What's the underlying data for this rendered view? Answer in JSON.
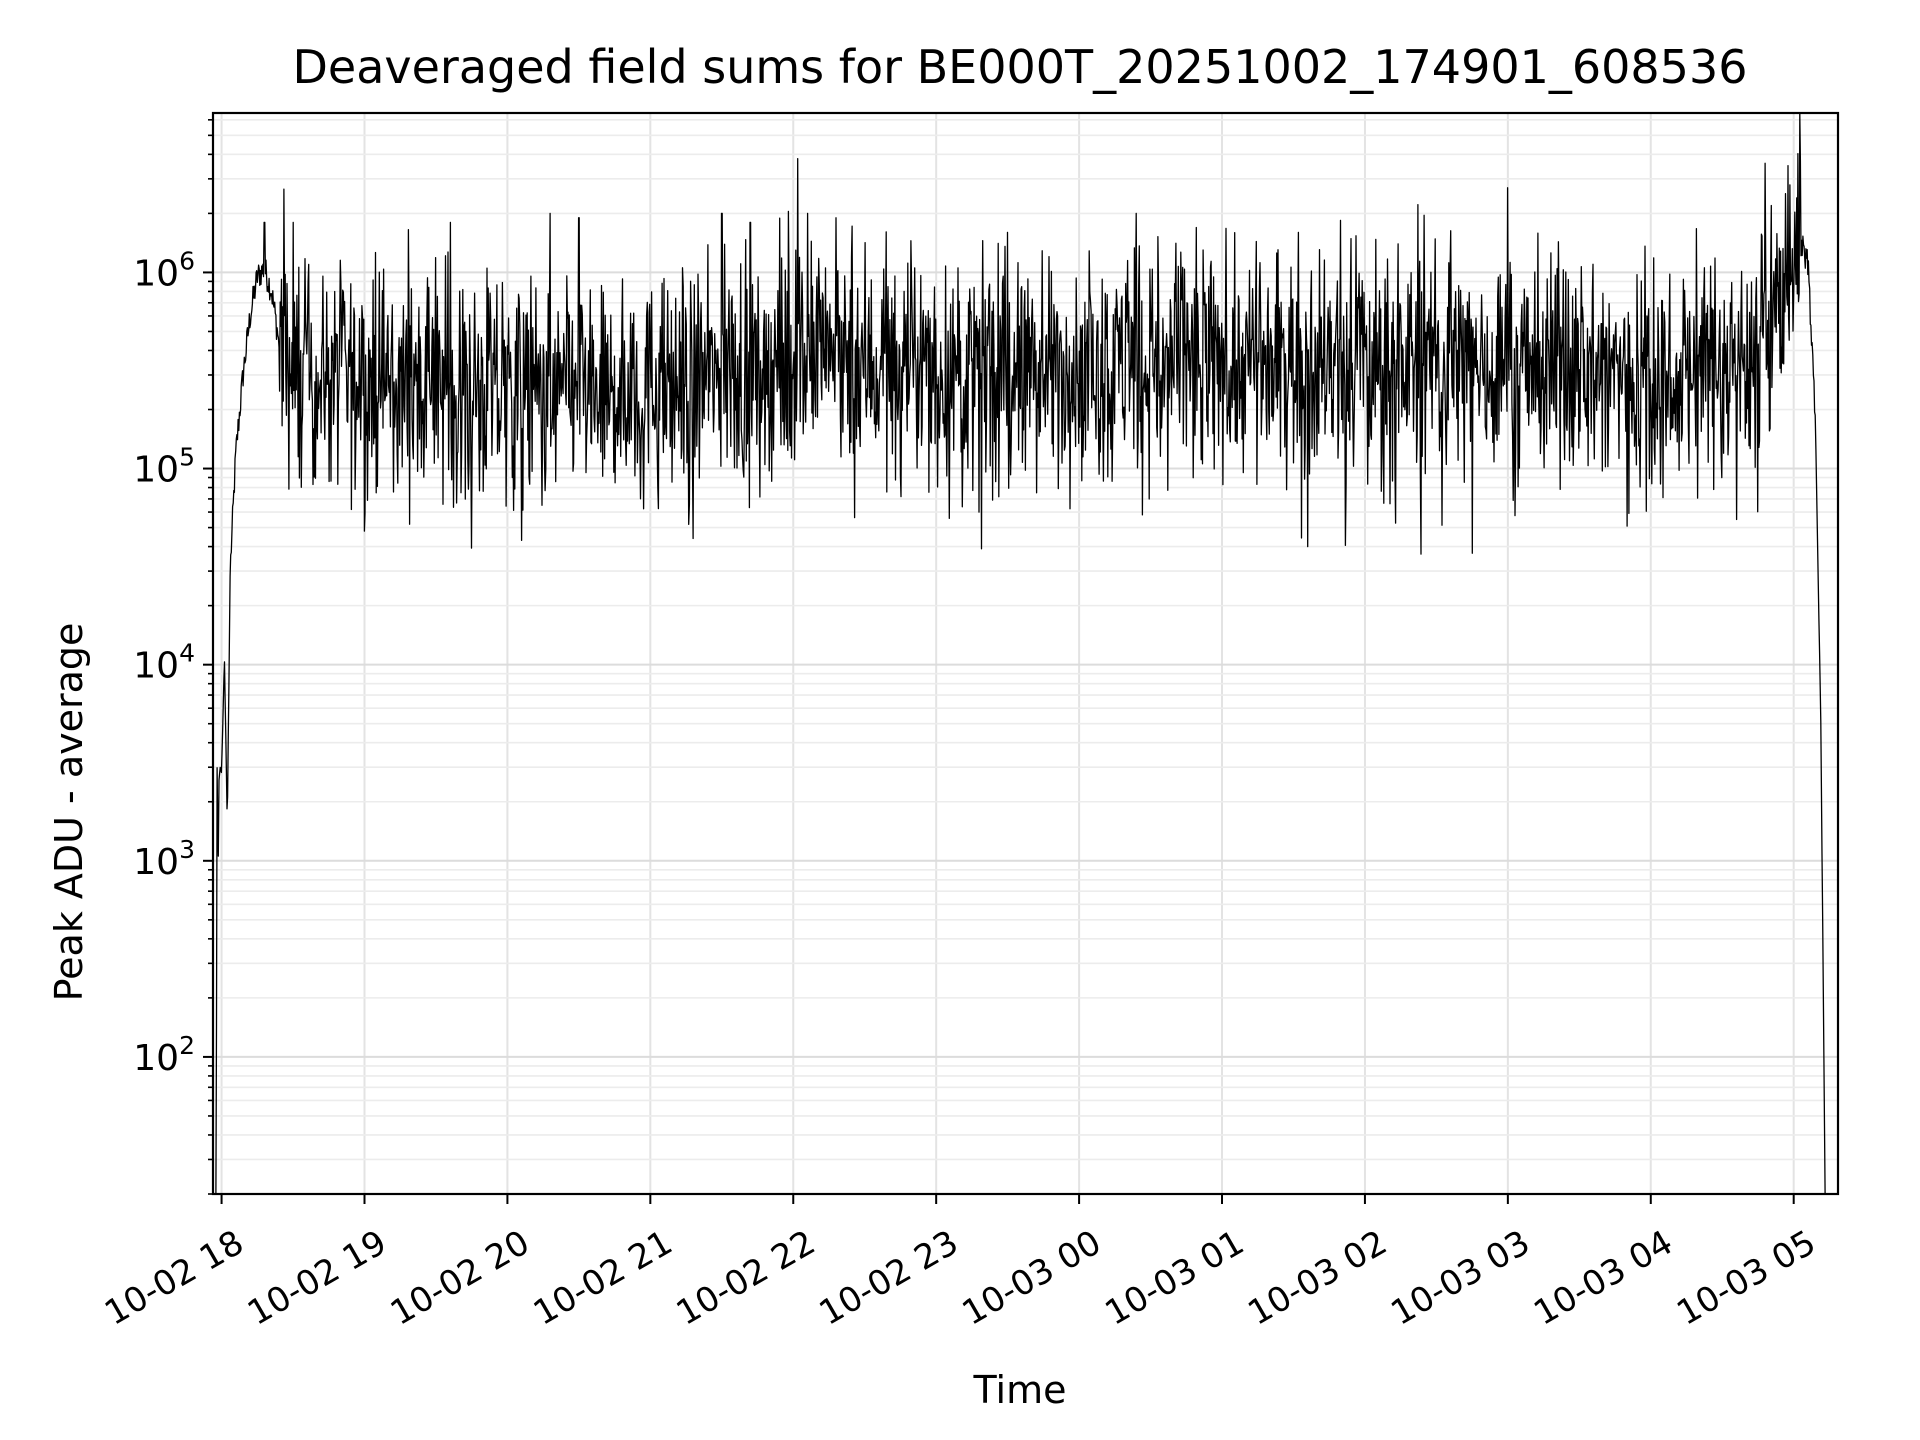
{
  "chart_data": {
    "type": "line",
    "title": "Deaveraged field sums for BE000T_20251002_174901_608536",
    "xlabel": "Time",
    "ylabel": "Peak ADU - average",
    "yscale": "log",
    "ylim": [
      20,
      6500000
    ],
    "xlim_hours": [
      -0.06,
      11.31
    ],
    "grid": true,
    "x_ticks": [
      {
        "hour": 0,
        "label": "10-02 18"
      },
      {
        "hour": 1,
        "label": "10-02 19"
      },
      {
        "hour": 2,
        "label": "10-02 20"
      },
      {
        "hour": 3,
        "label": "10-02 21"
      },
      {
        "hour": 4,
        "label": "10-02 22"
      },
      {
        "hour": 5,
        "label": "10-02 23"
      },
      {
        "hour": 6,
        "label": "10-03 00"
      },
      {
        "hour": 7,
        "label": "10-03 01"
      },
      {
        "hour": 8,
        "label": "10-03 02"
      },
      {
        "hour": 9,
        "label": "10-03 03"
      },
      {
        "hour": 10,
        "label": "10-03 04"
      },
      {
        "hour": 11,
        "label": "10-03 05"
      }
    ],
    "y_ticks": [
      {
        "value": 100,
        "base": "10",
        "exp": "2"
      },
      {
        "value": 1000,
        "base": "10",
        "exp": "3"
      },
      {
        "value": 10000,
        "base": "10",
        "exp": "4"
      },
      {
        "value": 100000,
        "base": "10",
        "exp": "5"
      },
      {
        "value": 1000000,
        "base": "10",
        "exp": "6"
      }
    ],
    "series": [
      {
        "name": "Peak ADU - average",
        "color": "#000000",
        "anchor_points": [
          [
            -0.04,
            20
          ],
          [
            -0.035,
            200
          ],
          [
            -0.03,
            8000
          ],
          [
            -0.025,
            500
          ],
          [
            -0.02,
            2500
          ],
          [
            -0.01,
            3000
          ],
          [
            0.0,
            2800
          ],
          [
            0.02,
            11000
          ],
          [
            0.04,
            1500
          ],
          [
            0.06,
            30000
          ],
          [
            0.1,
            120000
          ],
          [
            0.15,
            300000
          ],
          [
            0.2,
            600000
          ],
          [
            0.25,
            950000
          ],
          [
            0.3,
            1050000
          ],
          [
            0.35,
            800000
          ],
          [
            0.4,
            450000
          ],
          [
            0.5,
            300000
          ],
          [
            1.0,
            280000
          ],
          [
            2.0,
            240000
          ],
          [
            3.0,
            250000
          ],
          [
            3.8,
            330000
          ],
          [
            4.0,
            380000
          ],
          [
            4.5,
            350000
          ],
          [
            5.0,
            300000
          ],
          [
            6.0,
            330000
          ],
          [
            7.0,
            330000
          ],
          [
            8.0,
            340000
          ],
          [
            9.0,
            340000
          ],
          [
            10.0,
            300000
          ],
          [
            10.6,
            350000
          ],
          [
            10.85,
            550000
          ],
          [
            11.0,
            1300000
          ],
          [
            11.05,
            1400000
          ],
          [
            11.1,
            1100000
          ],
          [
            11.15,
            200000
          ],
          [
            11.19,
            5000
          ],
          [
            11.22,
            20
          ]
        ],
        "spikes": [
          [
            0.3,
            1800000
          ],
          [
            0.5,
            1800000
          ],
          [
            1.0,
            48000
          ],
          [
            1.6,
            1800000
          ],
          [
            2.1,
            43000
          ],
          [
            2.3,
            2000000
          ],
          [
            2.5,
            1900000
          ],
          [
            3.3,
            44000
          ],
          [
            3.5,
            2000000
          ],
          [
            3.7,
            1800000
          ],
          [
            4.03,
            3800000
          ],
          [
            4.1,
            2000000
          ],
          [
            4.3,
            1900000
          ],
          [
            5.3,
            60000
          ],
          [
            5.5,
            1600000
          ],
          [
            6.4,
            2000000
          ],
          [
            7.6,
            40000
          ],
          [
            9.0,
            2700000
          ],
          [
            10.6,
            55000
          ],
          [
            10.8,
            3600000
          ],
          [
            10.96,
            3500000
          ],
          [
            11.02,
            2400000
          ]
        ]
      }
    ]
  }
}
